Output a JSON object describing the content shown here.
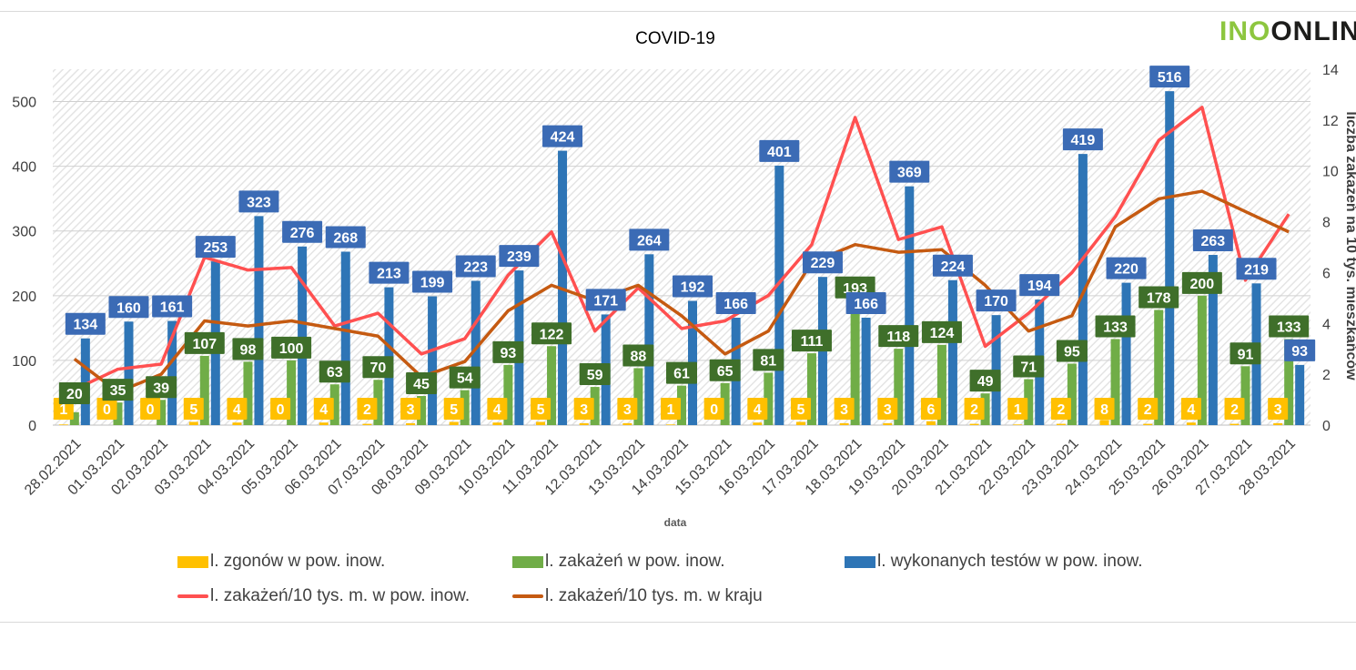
{
  "logo": {
    "part1": "INO",
    "part2": "ONLIN"
  },
  "chart_data": {
    "type": "bar",
    "title": "COVID-19",
    "xlabel": "data",
    "ylabel": "",
    "ylabel_right": "liczba zakażeń na 10 tys. mieszkańców",
    "ylim": [
      0,
      550
    ],
    "ylim_right": [
      0,
      14
    ],
    "yticks": [
      0,
      100,
      200,
      300,
      400,
      500
    ],
    "yticks_right": [
      0,
      2,
      4,
      6,
      8,
      10,
      12,
      14
    ],
    "grid": true,
    "legend_position": "bottom",
    "categories": [
      "28.02.2021",
      "01.03.2021",
      "02.03.2021",
      "03.03.2021",
      "04.03.2021",
      "05.03.2021",
      "06.03.2021",
      "07.03.2021",
      "08.03.2021",
      "09.03.2021",
      "10.03.2021",
      "11.03.2021",
      "12.03.2021",
      "13.03.2021",
      "14.03.2021",
      "15.03.2021",
      "16.03.2021",
      "17.03.2021",
      "18.03.2021",
      "19.03.2021",
      "20.03.2021",
      "21.03.2021",
      "22.03.2021",
      "23.03.2021",
      "24.03.2021",
      "25.03.2021",
      "26.03.2021",
      "27.03.2021",
      "28.03.2021"
    ],
    "series": [
      {
        "name": "l. zgonów w pow. inow.",
        "type": "bar",
        "color": "#ffc000",
        "values": [
          1,
          0,
          0,
          5,
          4,
          0,
          4,
          2,
          3,
          5,
          4,
          5,
          3,
          3,
          1,
          0,
          4,
          5,
          3,
          3,
          6,
          2,
          1,
          2,
          8,
          2,
          4,
          2,
          3
        ]
      },
      {
        "name": "l. zakażeń w pow. inow.",
        "type": "bar",
        "color": "#70ad47",
        "values": [
          20,
          35,
          39,
          107,
          98,
          100,
          63,
          70,
          45,
          54,
          93,
          122,
          59,
          88,
          61,
          65,
          81,
          111,
          193,
          118,
          124,
          49,
          71,
          95,
          133,
          178,
          200,
          91,
          133
        ]
      },
      {
        "name": "l. wykonanych testów w pow. inow.",
        "type": "bar",
        "color": "#2e75b6",
        "values": [
          134,
          160,
          161,
          253,
          323,
          276,
          268,
          213,
          199,
          223,
          239,
          424,
          171,
          264,
          192,
          166,
          401,
          229,
          166,
          369,
          224,
          170,
          194,
          419,
          220,
          516,
          263,
          219,
          93
        ]
      },
      {
        "name": "l. zakażeń/10 tys. m. w pow. inow.",
        "type": "line",
        "axis": "right",
        "color": "#ff5050",
        "values": [
          1.4,
          2.2,
          2.4,
          6.6,
          6.1,
          6.2,
          3.9,
          4.4,
          2.8,
          3.4,
          5.9,
          7.6,
          3.7,
          5.4,
          3.8,
          4.1,
          5.1,
          7.1,
          12.1,
          7.3,
          7.8,
          3.1,
          4.4,
          6.0,
          8.2,
          11.2,
          12.5,
          5.7,
          8.3
        ]
      },
      {
        "name": "l. zakażeń/10 tys. m. w kraju",
        "type": "line",
        "axis": "right",
        "color": "#c55a11",
        "values": [
          2.6,
          1.3,
          2.0,
          4.1,
          3.9,
          4.1,
          3.8,
          3.5,
          1.9,
          2.5,
          4.5,
          5.5,
          4.9,
          5.5,
          4.3,
          2.8,
          3.7,
          6.4,
          7.1,
          6.8,
          6.9,
          5.5,
          3.7,
          4.3,
          7.8,
          8.9,
          9.2,
          8.4,
          7.6
        ]
      }
    ]
  }
}
